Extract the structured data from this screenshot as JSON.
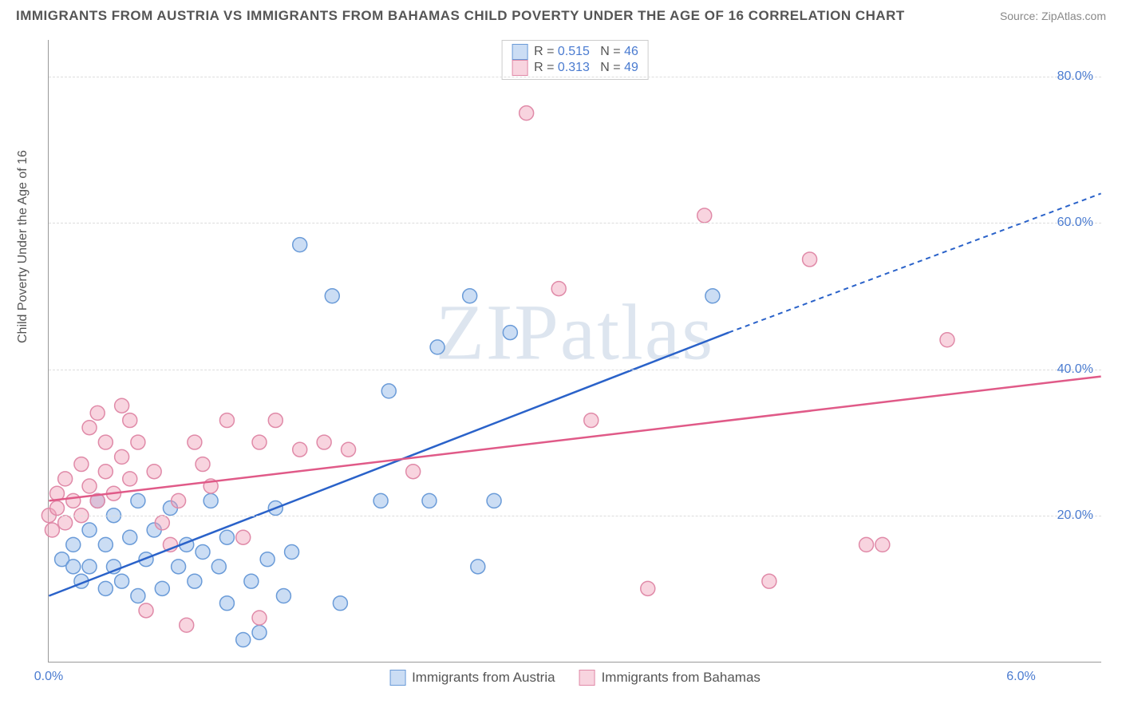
{
  "title": "IMMIGRANTS FROM AUSTRIA VS IMMIGRANTS FROM BAHAMAS CHILD POVERTY UNDER THE AGE OF 16 CORRELATION CHART",
  "source": "Source: ZipAtlas.com",
  "ylabel": "Child Poverty Under the Age of 16",
  "watermark": "ZIPatlas",
  "xlim": [
    0,
    6.5
  ],
  "ylim": [
    0,
    85
  ],
  "xticks": [
    {
      "v": 0,
      "l": "0.0%"
    },
    {
      "v": 6,
      "l": "6.0%"
    }
  ],
  "yticks": [
    {
      "v": 20,
      "l": "20.0%"
    },
    {
      "v": 40,
      "l": "40.0%"
    },
    {
      "v": 60,
      "l": "60.0%"
    },
    {
      "v": 80,
      "l": "80.0%"
    }
  ],
  "grid_color": "#dddddd",
  "background_color": "#ffffff",
  "marker_radius": 9,
  "marker_stroke_width": 1.5,
  "line_width": 2.5,
  "series": [
    {
      "name": "Immigrants from Austria",
      "color_fill": "rgba(140,180,230,0.45)",
      "color_stroke": "#6a9bd8",
      "line_color": "#2a62c9",
      "R": "0.515",
      "N": "46",
      "trend": {
        "x1": 0,
        "y1": 9,
        "x2": 4.2,
        "y2": 45,
        "x2d": 6.5,
        "y2d": 64
      },
      "points": [
        [
          0.08,
          14
        ],
        [
          0.15,
          13
        ],
        [
          0.15,
          16
        ],
        [
          0.2,
          11
        ],
        [
          0.25,
          13
        ],
        [
          0.25,
          18
        ],
        [
          0.3,
          22
        ],
        [
          0.35,
          10
        ],
        [
          0.35,
          16
        ],
        [
          0.4,
          13
        ],
        [
          0.4,
          20
        ],
        [
          0.45,
          11
        ],
        [
          0.5,
          17
        ],
        [
          0.55,
          9
        ],
        [
          0.55,
          22
        ],
        [
          0.6,
          14
        ],
        [
          0.65,
          18
        ],
        [
          0.7,
          10
        ],
        [
          0.75,
          21
        ],
        [
          0.8,
          13
        ],
        [
          0.85,
          16
        ],
        [
          0.9,
          11
        ],
        [
          0.95,
          15
        ],
        [
          1.0,
          22
        ],
        [
          1.05,
          13
        ],
        [
          1.1,
          17
        ],
        [
          1.1,
          8
        ],
        [
          1.2,
          3
        ],
        [
          1.25,
          11
        ],
        [
          1.3,
          4
        ],
        [
          1.35,
          14
        ],
        [
          1.4,
          21
        ],
        [
          1.45,
          9
        ],
        [
          1.5,
          15
        ],
        [
          1.55,
          57
        ],
        [
          1.75,
          50
        ],
        [
          1.8,
          8
        ],
        [
          2.05,
          22
        ],
        [
          2.1,
          37
        ],
        [
          2.35,
          22
        ],
        [
          2.4,
          43
        ],
        [
          2.6,
          50
        ],
        [
          2.65,
          13
        ],
        [
          2.75,
          22
        ],
        [
          2.85,
          45
        ],
        [
          4.1,
          50
        ]
      ]
    },
    {
      "name": "Immigrants from Bahamas",
      "color_fill": "rgba(240,160,185,0.45)",
      "color_stroke": "#e08aa8",
      "line_color": "#e05a88",
      "R": "0.313",
      "N": "49",
      "trend": {
        "x1": 0,
        "y1": 22,
        "x2": 6.5,
        "y2": 39,
        "x2d": 6.5,
        "y2d": 39
      },
      "points": [
        [
          0.0,
          20
        ],
        [
          0.02,
          18
        ],
        [
          0.05,
          21
        ],
        [
          0.05,
          23
        ],
        [
          0.1,
          19
        ],
        [
          0.1,
          25
        ],
        [
          0.15,
          22
        ],
        [
          0.2,
          20
        ],
        [
          0.2,
          27
        ],
        [
          0.25,
          24
        ],
        [
          0.25,
          32
        ],
        [
          0.3,
          22
        ],
        [
          0.3,
          34
        ],
        [
          0.35,
          26
        ],
        [
          0.35,
          30
        ],
        [
          0.4,
          23
        ],
        [
          0.45,
          35
        ],
        [
          0.45,
          28
        ],
        [
          0.5,
          33
        ],
        [
          0.5,
          25
        ],
        [
          0.55,
          30
        ],
        [
          0.6,
          7
        ],
        [
          0.65,
          26
        ],
        [
          0.7,
          19
        ],
        [
          0.75,
          16
        ],
        [
          0.8,
          22
        ],
        [
          0.85,
          5
        ],
        [
          0.9,
          30
        ],
        [
          0.95,
          27
        ],
        [
          1.0,
          24
        ],
        [
          1.1,
          33
        ],
        [
          1.2,
          17
        ],
        [
          1.3,
          30
        ],
        [
          1.3,
          6
        ],
        [
          1.4,
          33
        ],
        [
          1.55,
          29
        ],
        [
          1.7,
          30
        ],
        [
          1.85,
          29
        ],
        [
          2.25,
          26
        ],
        [
          2.95,
          75
        ],
        [
          3.15,
          51
        ],
        [
          3.35,
          33
        ],
        [
          3.7,
          10
        ],
        [
          4.05,
          61
        ],
        [
          4.45,
          11
        ],
        [
          4.7,
          55
        ],
        [
          5.05,
          16
        ],
        [
          5.15,
          16
        ],
        [
          5.55,
          44
        ]
      ]
    }
  ],
  "legend_bottom": [
    {
      "label": "Immigrants from Austria"
    },
    {
      "label": "Immigrants from Bahamas"
    }
  ]
}
